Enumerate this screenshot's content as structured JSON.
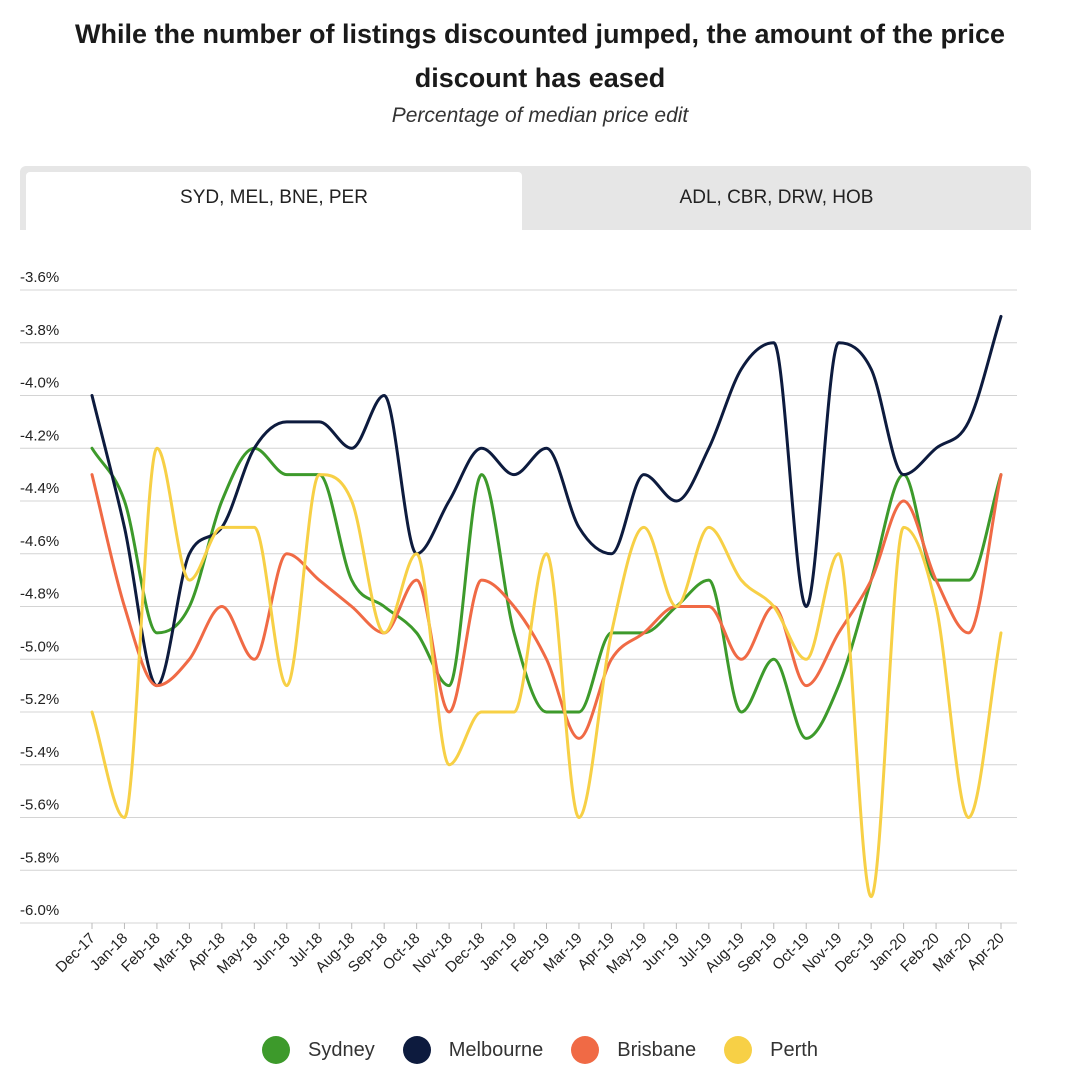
{
  "title": "While the number of listings discounted jumped, the amount of the price discount has eased",
  "subtitle": "Percentage of median price edit",
  "tabs": [
    {
      "label": "SYD, MEL, BNE, PER",
      "active": true
    },
    {
      "label": "ADL, CBR, DRW, HOB",
      "active": false
    }
  ],
  "colors": {
    "Sydney": "#3d9a2b",
    "Melbourne": "#0d1b3e",
    "Brisbane": "#f06a45",
    "Perth": "#f7d046",
    "grid": "#d4d4d4",
    "tab_inactive": "#e6e6e6"
  },
  "chart_data": {
    "type": "line",
    "title": "While the number of listings discounted jumped, the amount of the price discount has eased",
    "subtitle": "Percentage of median price edit",
    "xlabel": "",
    "ylabel": "",
    "ylim": [
      -6.0,
      -3.6
    ],
    "yticks": [
      "-3.6%",
      "-3.8%",
      "-4.0%",
      "-4.2%",
      "-4.4%",
      "-4.6%",
      "-4.8%",
      "-5.0%",
      "-5.2%",
      "-5.4%",
      "-5.6%",
      "-5.8%",
      "-6.0%"
    ],
    "grid": true,
    "legend_position": "bottom",
    "categories": [
      "Dec-17",
      "Jan-18",
      "Feb-18",
      "Mar-18",
      "Apr-18",
      "May-18",
      "Jun-18",
      "Jul-18",
      "Aug-18",
      "Sep-18",
      "Oct-18",
      "Nov-18",
      "Dec-18",
      "Jan-19",
      "Feb-19",
      "Mar-19",
      "Apr-19",
      "May-19",
      "Jun-19",
      "Jul-19",
      "Aug-19",
      "Sep-19",
      "Oct-19",
      "Nov-19",
      "Dec-19",
      "Jan-20",
      "Feb-20",
      "Mar-20",
      "Apr-20"
    ],
    "series": [
      {
        "name": "Sydney",
        "values": [
          -4.2,
          -4.4,
          -4.9,
          -4.8,
          -4.4,
          -4.2,
          -4.3,
          -4.3,
          -4.7,
          -4.8,
          -4.9,
          -5.1,
          -4.3,
          -4.9,
          -5.2,
          -5.2,
          -4.9,
          -4.9,
          -4.8,
          -4.7,
          -5.2,
          -5.0,
          -5.3,
          -5.1,
          -4.7,
          -4.3,
          -4.7,
          -4.7,
          -4.3
        ]
      },
      {
        "name": "Melbourne",
        "values": [
          -4.0,
          -4.5,
          -5.1,
          -4.6,
          -4.5,
          -4.2,
          -4.1,
          -4.1,
          -4.2,
          -4.0,
          -4.6,
          -4.4,
          -4.2,
          -4.3,
          -4.2,
          -4.5,
          -4.6,
          -4.3,
          -4.4,
          -4.2,
          -3.9,
          -3.8,
          -4.8,
          -3.8,
          -3.9,
          -4.3,
          -4.2,
          -4.1,
          -3.7
        ]
      },
      {
        "name": "Brisbane",
        "values": [
          -4.3,
          -4.8,
          -5.1,
          -5.0,
          -4.8,
          -5.0,
          -4.6,
          -4.7,
          -4.8,
          -4.9,
          -4.7,
          -5.2,
          -4.7,
          -4.8,
          -5.0,
          -5.3,
          -5.0,
          -4.9,
          -4.8,
          -4.8,
          -5.0,
          -4.8,
          -5.1,
          -4.9,
          -4.7,
          -4.4,
          -4.7,
          -4.9,
          -4.3
        ]
      },
      {
        "name": "Perth",
        "values": [
          -5.2,
          -5.6,
          -4.2,
          -4.7,
          -4.5,
          -4.5,
          -5.1,
          -4.3,
          -4.4,
          -4.9,
          -4.6,
          -5.4,
          -5.2,
          -5.2,
          -4.6,
          -5.6,
          -4.9,
          -4.5,
          -4.8,
          -4.5,
          -4.7,
          -4.8,
          -5.0,
          -4.6,
          -5.9,
          -4.5,
          -4.8,
          -5.6,
          -4.9
        ]
      }
    ]
  }
}
